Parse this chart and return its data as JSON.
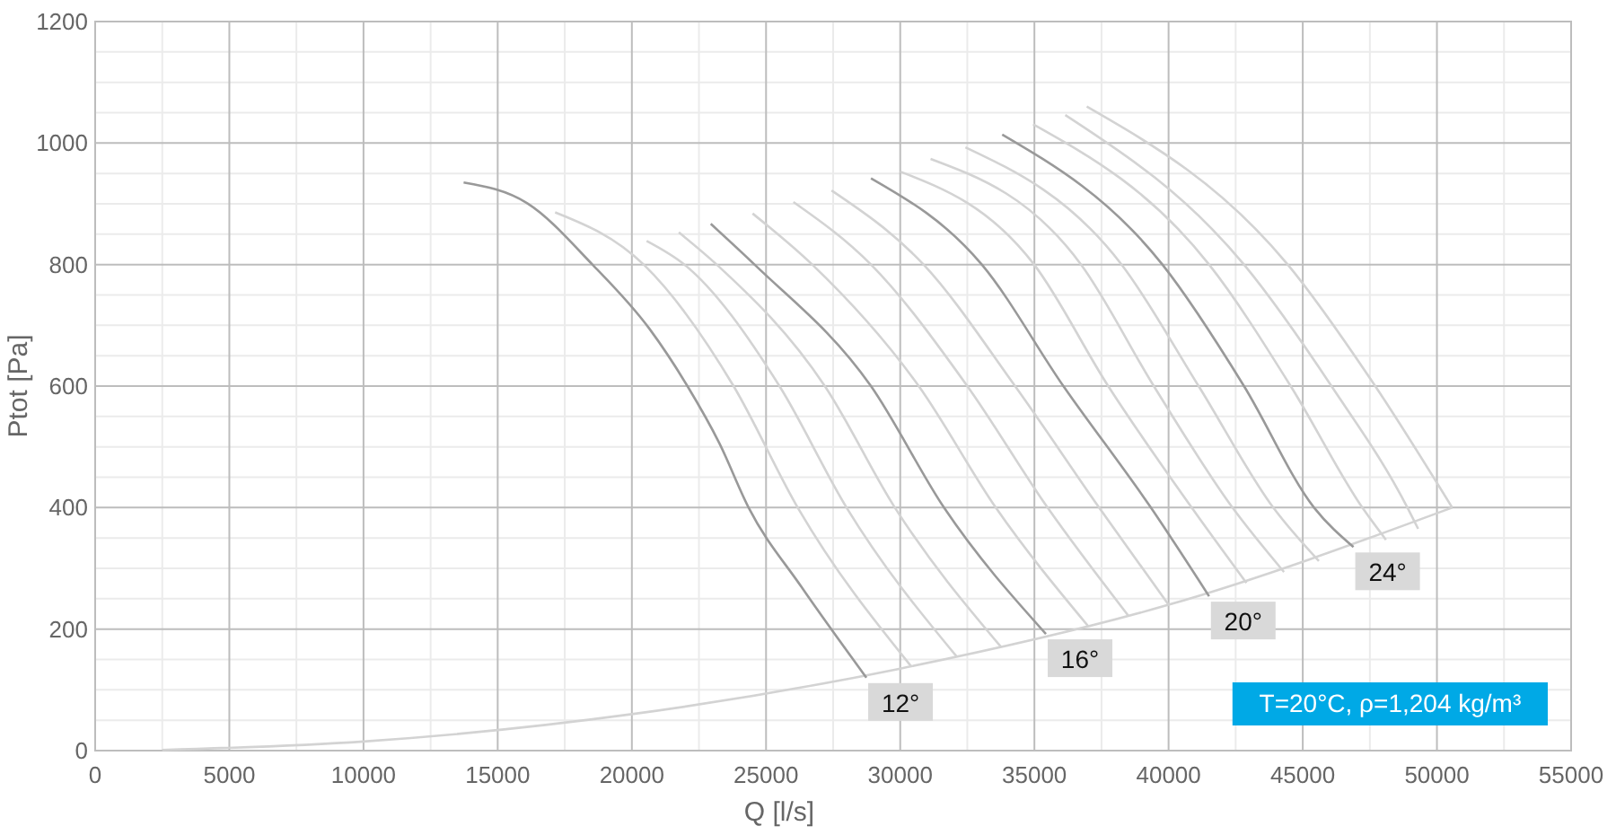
{
  "chart_data": {
    "type": "line",
    "xlabel": "Q [l/s]",
    "ylabel": "Ptot [Pa]",
    "xlim": [
      0,
      55000
    ],
    "ylim": [
      0,
      1200
    ],
    "xticks": [
      0,
      5000,
      10000,
      15000,
      20000,
      25000,
      30000,
      35000,
      40000,
      45000,
      50000,
      55000
    ],
    "yticks": [
      0,
      200,
      400,
      600,
      800,
      1000,
      1200
    ],
    "grid": true,
    "marker": "none",
    "line_style": "solid",
    "series": [
      {
        "color": "#d3d3d3",
        "x": [
          2500,
          10000,
          20000,
          30000,
          40000,
          50570
        ],
        "values": [
          1,
          15,
          60,
          135,
          240,
          400
        ]
      },
      {
        "color": "#999999",
        "x": [
          13730,
          16100,
          18530,
          20660,
          22070,
          23260,
          24350,
          26310,
          28740
        ],
        "values": [
          935,
          901,
          800,
          694,
          600,
          506,
          400,
          270,
          120
        ]
      },
      {
        "color": "#d3d3d3",
        "x": [
          17140,
          20440,
          23790,
          26180,
          30400
        ],
        "values": [
          886,
          800,
          600,
          400,
          139
        ]
      },
      {
        "color": "#d3d3d3",
        "x": [
          20550,
          21960,
          25500,
          28000,
          32100
        ],
        "values": [
          839,
          800,
          600,
          400,
          155
        ]
      },
      {
        "color": "#d3d3d3",
        "x": [
          21750,
          23160,
          27190,
          29800,
          33750
        ],
        "values": [
          853,
          800,
          600,
          400,
          171
        ]
      },
      {
        "color": "#999999",
        "x": [
          22940,
          24570,
          28910,
          31630,
          35430
        ],
        "values": [
          867,
          800,
          600,
          400,
          192
        ]
      },
      {
        "color": "#d3d3d3",
        "x": [
          24500,
          26720,
          30690,
          33560,
          37000
        ],
        "values": [
          884,
          800,
          600,
          400,
          205
        ]
      },
      {
        "color": "#d3d3d3",
        "x": [
          26020,
          28910,
          32500,
          35490,
          38500
        ],
        "values": [
          903,
          800,
          600,
          400,
          222
        ]
      },
      {
        "color": "#d3d3d3",
        "x": [
          27440,
          30870,
          34280,
          37410,
          40000
        ],
        "values": [
          922,
          800,
          600,
          400,
          240
        ]
      },
      {
        "color": "#999999",
        "x": [
          28910,
          33040,
          36080,
          39340,
          41510
        ],
        "values": [
          942,
          800,
          600,
          400,
          254
        ]
      },
      {
        "color": "#d3d3d3",
        "x": [
          30000,
          34990,
          37750,
          40860,
          42900
        ],
        "values": [
          953,
          800,
          600,
          400,
          276
        ]
      },
      {
        "color": "#d3d3d3",
        "x": [
          31130,
          36740,
          39450,
          42380,
          44300
        ],
        "values": [
          974,
          800,
          600,
          400,
          294
        ]
      },
      {
        "color": "#d3d3d3",
        "x": [
          32430,
          38250,
          41120,
          43900,
          45600
        ],
        "values": [
          993,
          800,
          600,
          400,
          312
        ]
      },
      {
        "color": "#999999",
        "x": [
          33800,
          39770,
          42810,
          45420,
          46890
        ],
        "values": [
          1014,
          800,
          600,
          400,
          335
        ]
      },
      {
        "color": "#d3d3d3",
        "x": [
          34950,
          41510,
          44550,
          47220,
          48100
        ],
        "values": [
          1031,
          800,
          600,
          400,
          347
        ]
      },
      {
        "color": "#d3d3d3",
        "x": [
          36150,
          42810,
          46070,
          48900,
          49300
        ],
        "values": [
          1046,
          800,
          600,
          400,
          365
        ]
      },
      {
        "color": "#d3d3d3",
        "x": [
          36950,
          44440,
          47700,
          50570
        ],
        "values": [
          1060,
          800,
          600,
          400
        ]
      }
    ],
    "annotations": [
      {
        "text": "12°",
        "x": 28740,
        "y": 120
      },
      {
        "text": "16°",
        "x": 35430,
        "y": 192
      },
      {
        "text": "20°",
        "x": 41510,
        "y": 254
      },
      {
        "text": "24°",
        "x": 46890,
        "y": 335
      },
      "T=20°C, ρ=1,204 kg/m³"
    ]
  }
}
